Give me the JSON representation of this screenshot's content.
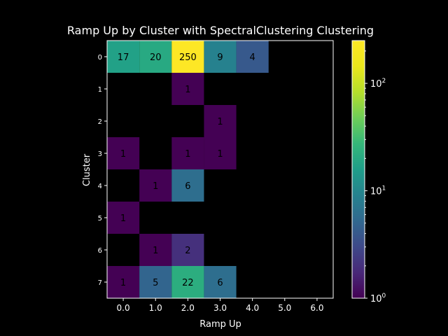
{
  "chart_data": {
    "type": "heatmap",
    "title": "Ramp Up by Cluster with SpectralClustering Clustering",
    "xlabel": "Ramp Up",
    "ylabel": "Cluster",
    "x_ticks": [
      "0.0",
      "1.0",
      "2.0",
      "3.0",
      "4.0",
      "5.0",
      "6.0"
    ],
    "y_ticks": [
      "0",
      "1",
      "2",
      "3",
      "4",
      "5",
      "6",
      "7"
    ],
    "values": [
      [
        17,
        20,
        250,
        9,
        4,
        null,
        null
      ],
      [
        null,
        null,
        1,
        null,
        null,
        null,
        null
      ],
      [
        null,
        null,
        null,
        1,
        null,
        null,
        null
      ],
      [
        1,
        null,
        1,
        1,
        null,
        null,
        null
      ],
      [
        null,
        1,
        6,
        null,
        null,
        null,
        null
      ],
      [
        1,
        null,
        null,
        null,
        null,
        null,
        null
      ],
      [
        null,
        1,
        2,
        null,
        null,
        null,
        null
      ],
      [
        1,
        5,
        22,
        6,
        null,
        null,
        null
      ]
    ],
    "color_scale": "log",
    "colormap": "viridis",
    "colorbar_range": [
      1,
      250
    ],
    "colorbar_ticks": [
      {
        "value": 1,
        "label": "10",
        "exp": "0"
      },
      {
        "value": 10,
        "label": "10",
        "exp": "1"
      },
      {
        "value": 100,
        "label": "10",
        "exp": "2"
      }
    ],
    "background": "#000000",
    "text_color": "#ffffff",
    "cell_label_color": "#000000"
  }
}
